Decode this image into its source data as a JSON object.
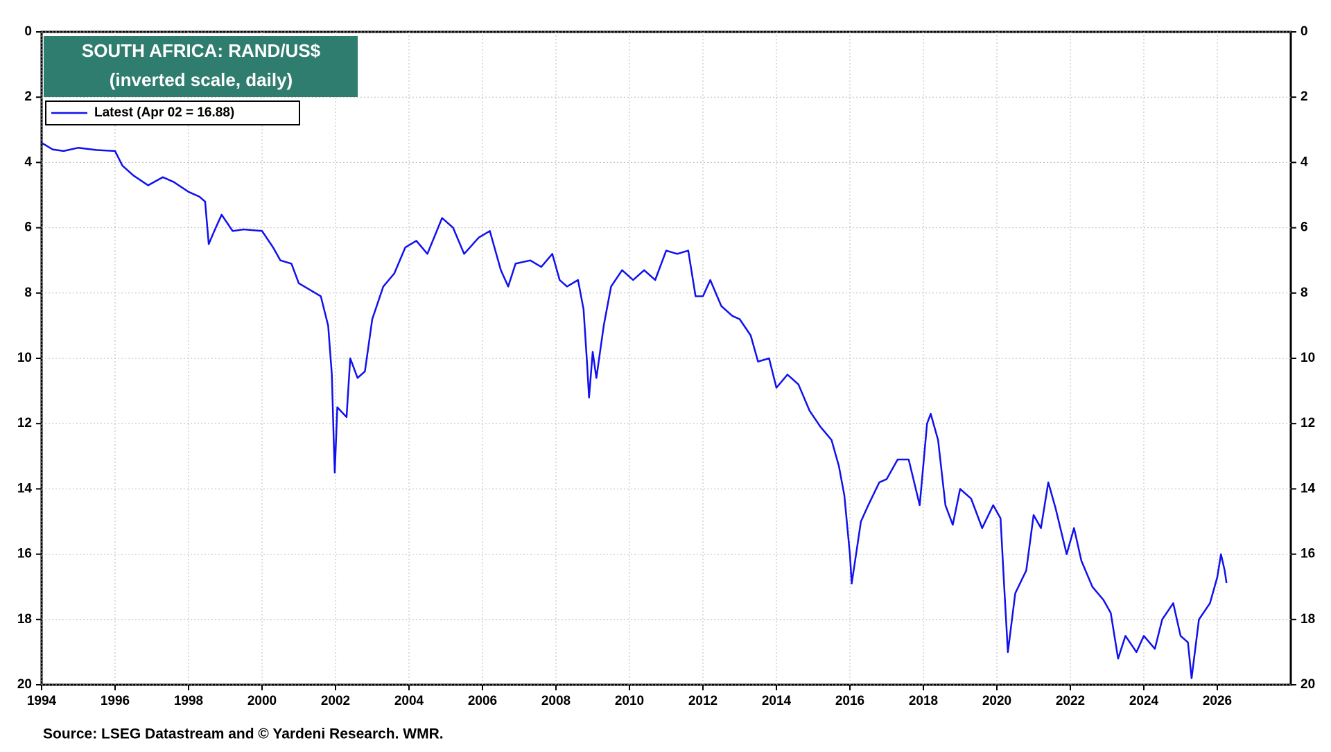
{
  "chart_data": {
    "type": "line",
    "title": "SOUTH AFRICA: RAND/US$",
    "subtitle": "(inverted scale, daily)",
    "source": "Source: LSEG Datastream and © Yardeni Research. WMR.",
    "inverted": true,
    "grid": true,
    "xlim": [
      1994,
      2028
    ],
    "xticks": [
      1994,
      1996,
      1998,
      2000,
      2002,
      2004,
      2006,
      2008,
      2010,
      2012,
      2014,
      2016,
      2018,
      2020,
      2022,
      2024,
      2026
    ],
    "ylim": [
      0,
      20
    ],
    "yticks": [
      0,
      2,
      4,
      6,
      8,
      10,
      12,
      14,
      16,
      18,
      20
    ],
    "series": [
      {
        "name": "Latest (Apr 02 = 16.88)",
        "color": "#1010ee",
        "x": [
          1994.0,
          1994.3,
          1994.6,
          1995.0,
          1995.5,
          1996.0,
          1996.2,
          1996.5,
          1996.9,
          1997.3,
          1997.6,
          1998.0,
          1998.3,
          1998.45,
          1998.55,
          1998.7,
          1998.9,
          1999.2,
          1999.5,
          2000.0,
          2000.3,
          2000.5,
          2000.8,
          2001.0,
          2001.3,
          2001.6,
          2001.8,
          2001.9,
          2001.95,
          2001.98,
          2002.05,
          2002.3,
          2002.4,
          2002.6,
          2002.8,
          2003.0,
          2003.3,
          2003.6,
          2003.9,
          2004.2,
          2004.5,
          2004.9,
          2005.2,
          2005.5,
          2005.9,
          2006.2,
          2006.5,
          2006.7,
          2006.9,
          2007.3,
          2007.6,
          2007.9,
          2008.1,
          2008.3,
          2008.6,
          2008.75,
          2008.85,
          2008.9,
          2009.0,
          2009.1,
          2009.3,
          2009.5,
          2009.8,
          2010.1,
          2010.4,
          2010.7,
          2011.0,
          2011.3,
          2011.6,
          2011.8,
          2012.0,
          2012.2,
          2012.5,
          2012.8,
          2013.0,
          2013.3,
          2013.5,
          2013.8,
          2014.0,
          2014.3,
          2014.6,
          2014.9,
          2015.2,
          2015.5,
          2015.7,
          2015.85,
          2016.0,
          2016.05,
          2016.3,
          2016.5,
          2016.8,
          2017.0,
          2017.3,
          2017.6,
          2017.9,
          2018.1,
          2018.2,
          2018.4,
          2018.6,
          2018.8,
          2019.0,
          2019.3,
          2019.6,
          2019.9,
          2020.1,
          2020.2,
          2020.3,
          2020.5,
          2020.8,
          2021.0,
          2021.2,
          2021.4,
          2021.6,
          2021.9,
          2022.1,
          2022.3,
          2022.6,
          2022.9,
          2023.1,
          2023.3,
          2023.5,
          2023.8,
          2024.0,
          2024.3,
          2024.5,
          2024.8,
          2025.0,
          2025.2,
          2025.3,
          2025.5,
          2025.8,
          2026.0,
          2026.1,
          2026.2,
          2026.25
        ],
        "values": [
          3.4,
          3.6,
          3.65,
          3.55,
          3.62,
          3.65,
          4.1,
          4.4,
          4.7,
          4.45,
          4.6,
          4.9,
          5.05,
          5.2,
          6.5,
          6.1,
          5.6,
          6.1,
          6.05,
          6.1,
          6.6,
          7.0,
          7.1,
          7.7,
          7.9,
          8.1,
          9.0,
          10.5,
          12.5,
          13.5,
          11.5,
          11.8,
          10.0,
          10.6,
          10.4,
          8.8,
          7.8,
          7.4,
          6.6,
          6.4,
          6.8,
          5.7,
          6.0,
          6.8,
          6.3,
          6.1,
          7.3,
          7.8,
          7.1,
          7.0,
          7.2,
          6.8,
          7.6,
          7.8,
          7.6,
          8.5,
          10.2,
          11.2,
          9.8,
          10.6,
          9.0,
          7.8,
          7.3,
          7.6,
          7.3,
          7.6,
          6.7,
          6.8,
          6.7,
          8.1,
          8.1,
          7.6,
          8.4,
          8.7,
          8.8,
          9.3,
          10.1,
          10.0,
          10.9,
          10.5,
          10.8,
          11.6,
          12.1,
          12.5,
          13.3,
          14.2,
          16.0,
          16.9,
          15.0,
          14.5,
          13.8,
          13.7,
          13.1,
          13.1,
          14.5,
          12.0,
          11.7,
          12.5,
          14.5,
          15.1,
          14.0,
          14.3,
          15.2,
          14.5,
          14.9,
          17.0,
          19.0,
          17.2,
          16.5,
          14.8,
          15.2,
          13.8,
          14.6,
          16.0,
          15.2,
          16.2,
          17.0,
          17.4,
          17.8,
          19.2,
          18.5,
          19.0,
          18.5,
          18.9,
          18.0,
          17.5,
          18.5,
          18.7,
          19.8,
          18.0,
          17.5,
          16.7,
          16.0,
          16.5,
          16.88
        ]
      }
    ]
  }
}
